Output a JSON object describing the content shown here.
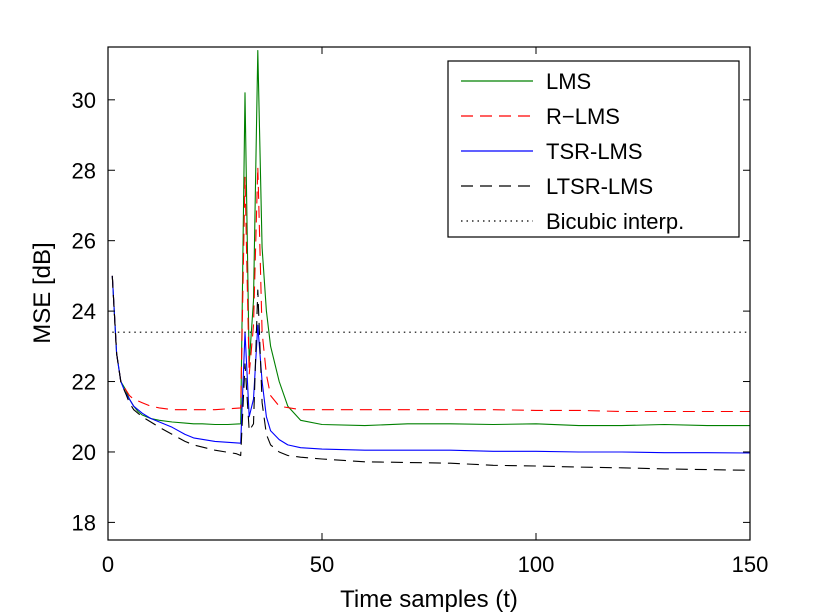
{
  "chart_data": {
    "type": "line",
    "title": "",
    "xlabel": "Time samples (t)",
    "ylabel": "MSE [dB]",
    "xlim": [
      0,
      150
    ],
    "ylim": [
      17.5,
      31.5
    ],
    "xticks": [
      0,
      50,
      100,
      150
    ],
    "yticks": [
      18,
      20,
      22,
      24,
      26,
      28,
      30
    ],
    "grid": false,
    "legend_position": "top-right",
    "series": [
      {
        "name": "LMS",
        "color": "#008000",
        "dash": "solid",
        "x": [
          1,
          2,
          3,
          4,
          5,
          6,
          7,
          8,
          10,
          12,
          15,
          18,
          20,
          22,
          25,
          28,
          31,
          32,
          33,
          34,
          35,
          36,
          37,
          38,
          40,
          42,
          45,
          50,
          60,
          70,
          80,
          90,
          100,
          110,
          120,
          130,
          140,
          150
        ],
        "values": [
          25.0,
          22.8,
          22.0,
          21.8,
          21.5,
          21.3,
          21.15,
          21.05,
          20.95,
          20.9,
          20.85,
          20.82,
          20.8,
          20.8,
          20.78,
          20.78,
          20.8,
          30.2,
          22.5,
          24.3,
          31.4,
          25.8,
          24.0,
          23.0,
          22.0,
          21.3,
          20.9,
          20.78,
          20.75,
          20.8,
          20.8,
          20.78,
          20.8,
          20.75,
          20.75,
          20.78,
          20.75,
          20.75
        ]
      },
      {
        "name": "R−LMS",
        "color": "#ff0000",
        "dash": "dashed",
        "x": [
          1,
          2,
          3,
          4,
          5,
          6,
          8,
          10,
          12,
          15,
          20,
          25,
          31,
          32,
          33,
          34,
          35,
          36,
          37,
          38,
          40,
          45,
          50,
          60,
          70,
          80,
          90,
          100,
          110,
          120,
          130,
          140,
          150
        ],
        "values": [
          25.0,
          22.8,
          22.0,
          21.8,
          21.6,
          21.5,
          21.4,
          21.3,
          21.25,
          21.2,
          21.2,
          21.2,
          21.25,
          27.8,
          22.2,
          23.6,
          28.1,
          23.4,
          22.2,
          21.6,
          21.3,
          21.2,
          21.2,
          21.2,
          21.2,
          21.2,
          21.2,
          21.18,
          21.18,
          21.15,
          21.15,
          21.15,
          21.15
        ]
      },
      {
        "name": "TSR-LMS",
        "color": "#0000ff",
        "dash": "solid",
        "x": [
          1,
          2,
          3,
          4,
          5,
          6,
          8,
          10,
          12,
          15,
          18,
          20,
          25,
          31,
          32,
          33,
          34,
          35,
          36,
          37,
          38,
          40,
          42,
          45,
          50,
          60,
          70,
          80,
          90,
          100,
          110,
          120,
          130,
          140,
          150
        ],
        "values": [
          25.0,
          22.8,
          22.0,
          21.7,
          21.5,
          21.3,
          21.1,
          20.95,
          20.85,
          20.7,
          20.5,
          20.4,
          20.3,
          20.25,
          23.4,
          21.0,
          21.5,
          23.6,
          22.0,
          21.0,
          20.6,
          20.35,
          20.2,
          20.12,
          20.08,
          20.05,
          20.05,
          20.05,
          20.02,
          20.02,
          20.0,
          20.0,
          19.98,
          19.98,
          19.97
        ]
      },
      {
        "name": "LTSR-LMS",
        "color": "#000000",
        "dash": "dashed",
        "x": [
          1,
          2,
          3,
          4,
          5,
          6,
          8,
          10,
          12,
          15,
          18,
          20,
          25,
          30,
          31,
          32,
          33,
          34,
          35,
          36,
          37,
          38,
          40,
          42,
          45,
          50,
          60,
          70,
          80,
          90,
          100,
          110,
          120,
          130,
          140,
          150
        ],
        "values": [
          25.0,
          22.8,
          22.0,
          21.7,
          21.4,
          21.2,
          21.0,
          20.85,
          20.7,
          20.5,
          20.3,
          20.2,
          20.05,
          19.95,
          19.9,
          22.5,
          20.6,
          20.8,
          24.6,
          21.4,
          20.5,
          20.2,
          20.0,
          19.9,
          19.85,
          19.8,
          19.72,
          19.7,
          19.68,
          19.62,
          19.6,
          19.57,
          19.55,
          19.52,
          19.5,
          19.48
        ]
      },
      {
        "name": "Bicubic interp.",
        "color": "#000000",
        "dash": "dotted",
        "x": [
          1,
          150
        ],
        "values": [
          23.4,
          23.4
        ]
      }
    ]
  }
}
